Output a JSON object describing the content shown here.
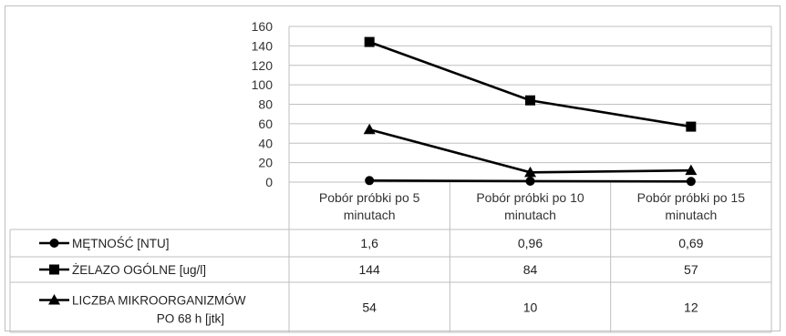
{
  "chart_data": {
    "type": "line",
    "categories": [
      [
        "Pobór próbki po 5",
        "minutach"
      ],
      [
        "Pobór próbki po 10",
        "minutach"
      ],
      [
        "Pobór próbki po 15",
        "minutach"
      ]
    ],
    "ylim": [
      0,
      160
    ],
    "yticks": [
      0,
      20,
      40,
      60,
      80,
      100,
      120,
      140,
      160
    ],
    "grid": true,
    "legend": "data table below chart",
    "series": [
      {
        "name": [
          "MĘTNOŚĆ  [NTU]"
        ],
        "marker": "circle",
        "values": [
          1.6,
          0.96,
          0.69
        ],
        "labels": [
          "1,6",
          "0,96",
          "0,69"
        ]
      },
      {
        "name": [
          "ŻELAZO OGÓLNE [ug/l]"
        ],
        "marker": "square",
        "values": [
          144,
          84,
          57
        ],
        "labels": [
          "144",
          "84",
          "57"
        ]
      },
      {
        "name": [
          "LICZBA MIKROORGANIZMÓW",
          "PO 68 h [jtk]"
        ],
        "marker": "triangle",
        "values": [
          54,
          10,
          12
        ],
        "labels": [
          "54",
          "10",
          "12"
        ]
      }
    ],
    "line_color": "#000000"
  }
}
